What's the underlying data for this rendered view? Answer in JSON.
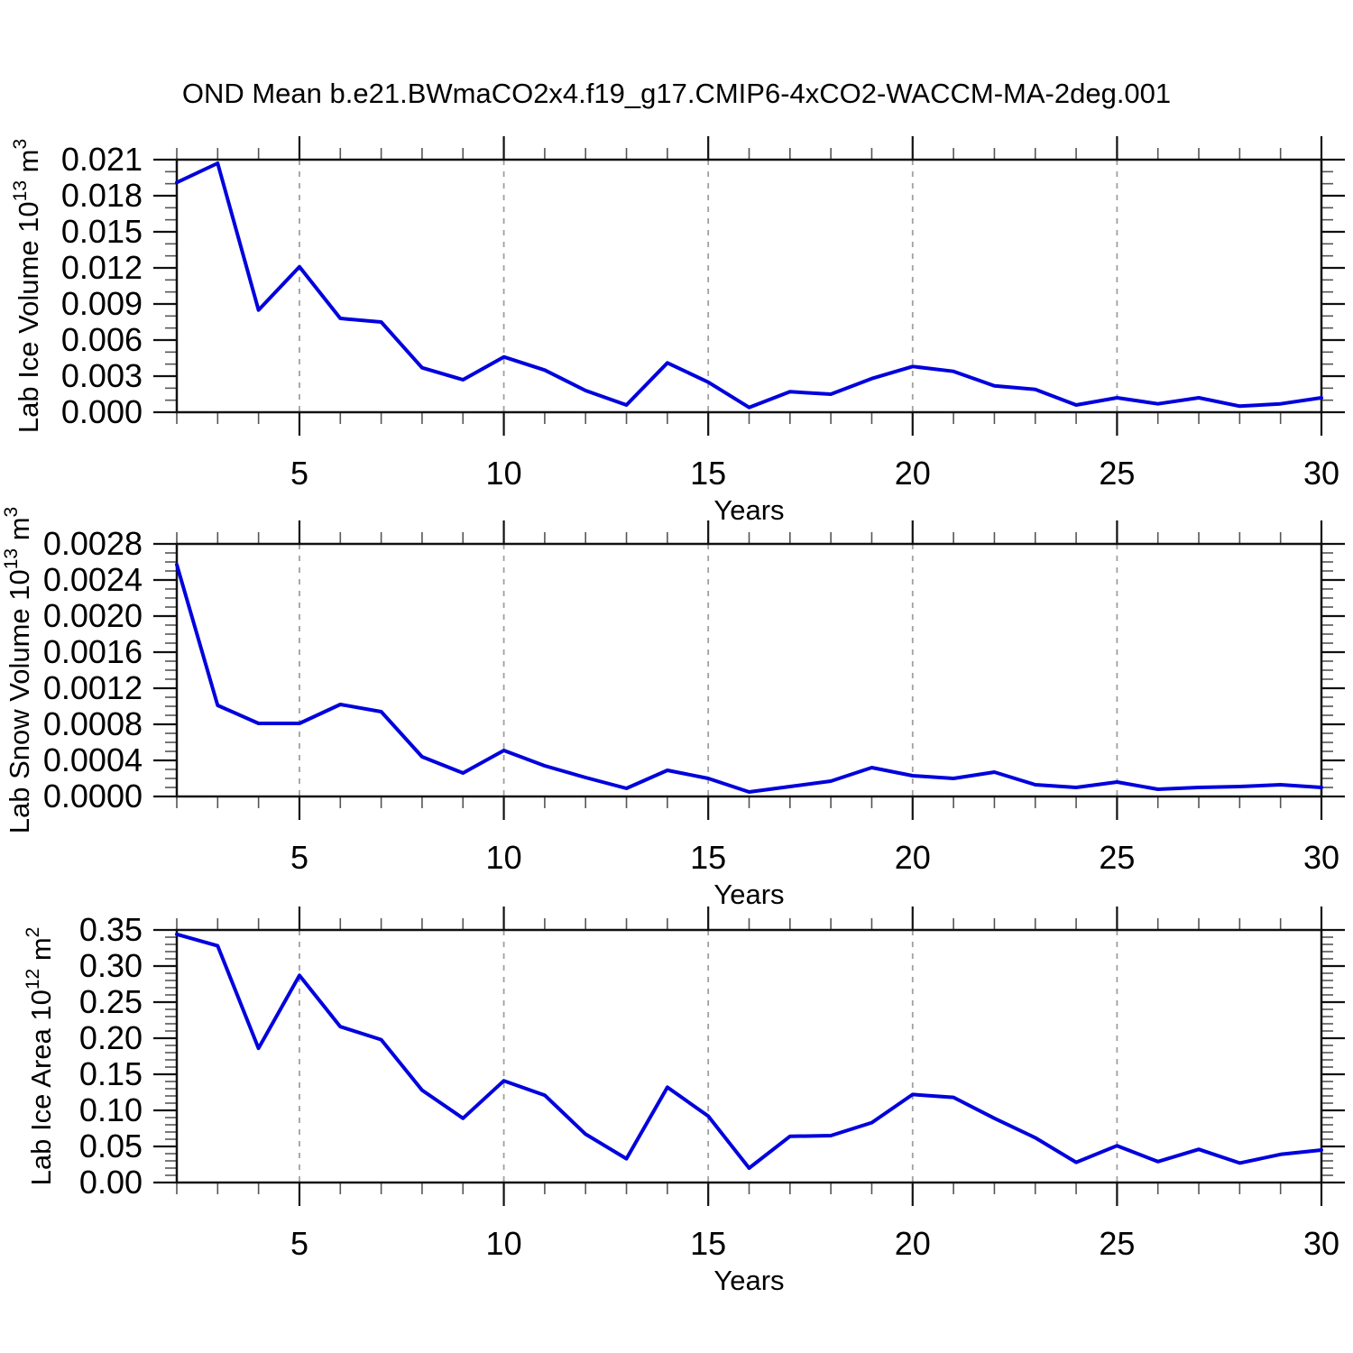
{
  "title": "OND Mean b.e21.BWmaCO2x4.f19_g17.CMIP6-4xCO2-WACCM-MA-2deg.001",
  "colors": {
    "line": "#0000dd",
    "frame": "#111111",
    "major_tick": "#111111",
    "minor_tick": "#555555",
    "grid": "#a0a0a0",
    "text": "#000000",
    "background": "#ffffff"
  },
  "x_axis": {
    "label": "Years",
    "range": [
      2,
      30
    ],
    "minor_step": 1,
    "major_ticks": [
      5,
      10,
      15,
      20,
      25,
      30
    ],
    "major_tick_labels": [
      "5",
      "10",
      "15",
      "20",
      "25",
      "30"
    ],
    "gridline_years": [
      5,
      10,
      15,
      20,
      25
    ]
  },
  "chart_data": [
    {
      "type": "line",
      "name": "lab-ice-volume",
      "ylabel_text": "Lab Ice Volume 10^13 m^3",
      "ylabel_segments": [
        {
          "t": "Lab Ice Volume 10"
        },
        {
          "t": "13",
          "sup": true
        },
        {
          "t": " m"
        },
        {
          "t": "3",
          "sup": true
        }
      ],
      "ylim": [
        0,
        0.021
      ],
      "ytick_step": 0.003,
      "y_minor_step": 0.001,
      "ytick_labels": [
        "0.000",
        "0.003",
        "0.006",
        "0.009",
        "0.012",
        "0.015",
        "0.018",
        "0.021"
      ],
      "x": [
        2,
        3,
        4,
        5,
        6,
        7,
        8,
        9,
        10,
        11,
        12,
        13,
        14,
        15,
        16,
        17,
        18,
        19,
        20,
        21,
        22,
        23,
        24,
        25,
        26,
        27,
        28,
        29,
        30
      ],
      "values": [
        0.0191,
        0.0207,
        0.0085,
        0.0121,
        0.0078,
        0.0075,
        0.0037,
        0.0027,
        0.0046,
        0.0035,
        0.0018,
        0.0006,
        0.0041,
        0.0025,
        0.0004,
        0.0017,
        0.0015,
        0.0028,
        0.0038,
        0.0034,
        0.0022,
        0.0019,
        0.0006,
        0.0012,
        0.0007,
        0.0012,
        0.0005,
        0.0007,
        0.0012
      ]
    },
    {
      "type": "line",
      "name": "lab-snow-volume",
      "ylabel_text": "Lab Snow Volume 10^13 m^3",
      "ylabel_segments": [
        {
          "t": "Lab Snow Volume 10"
        },
        {
          "t": "13",
          "sup": true
        },
        {
          "t": " m"
        },
        {
          "t": "3",
          "sup": true
        }
      ],
      "ylim": [
        0,
        0.0028
      ],
      "ytick_step": 0.0004,
      "y_minor_step": 0.0001,
      "ytick_labels": [
        "0.0000",
        "0.0004",
        "0.0008",
        "0.0012",
        "0.0016",
        "0.0020",
        "0.0024",
        "0.0028"
      ],
      "x": [
        2,
        3,
        4,
        5,
        6,
        7,
        8,
        9,
        10,
        11,
        12,
        13,
        14,
        15,
        16,
        17,
        18,
        19,
        20,
        21,
        22,
        23,
        24,
        25,
        26,
        27,
        28,
        29,
        30
      ],
      "values": [
        0.00257,
        0.00101,
        0.00081,
        0.00081,
        0.00102,
        0.00094,
        0.00044,
        0.00026,
        0.00051,
        0.00034,
        0.00021,
        9e-05,
        0.00029,
        0.0002,
        5e-05,
        0.00011,
        0.00017,
        0.00032,
        0.00023,
        0.0002,
        0.00027,
        0.00013,
        0.0001,
        0.00016,
        8e-05,
        0.0001,
        0.00011,
        0.00013,
        0.0001
      ]
    },
    {
      "type": "line",
      "name": "lab-ice-area",
      "ylabel_text": "Lab Ice Area 10^12 m^2",
      "ylabel_segments": [
        {
          "t": "Lab Ice Area 10"
        },
        {
          "t": "12",
          "sup": true
        },
        {
          "t": " m"
        },
        {
          "t": "2",
          "sup": true
        }
      ],
      "ylim": [
        0,
        0.35
      ],
      "ytick_step": 0.05,
      "y_minor_step": 0.01,
      "ytick_labels": [
        "0.00",
        "0.05",
        "0.10",
        "0.15",
        "0.20",
        "0.25",
        "0.30",
        "0.35"
      ],
      "x": [
        2,
        3,
        4,
        5,
        6,
        7,
        8,
        9,
        10,
        11,
        12,
        13,
        14,
        15,
        16,
        17,
        18,
        19,
        20,
        21,
        22,
        23,
        24,
        25,
        26,
        27,
        28,
        29,
        30
      ],
      "values": [
        0.344,
        0.328,
        0.186,
        0.287,
        0.216,
        0.198,
        0.128,
        0.089,
        0.141,
        0.121,
        0.067,
        0.033,
        0.132,
        0.092,
        0.02,
        0.064,
        0.065,
        0.083,
        0.122,
        0.118,
        0.089,
        0.062,
        0.028,
        0.051,
        0.029,
        0.046,
        0.027,
        0.039,
        0.045
      ]
    }
  ]
}
